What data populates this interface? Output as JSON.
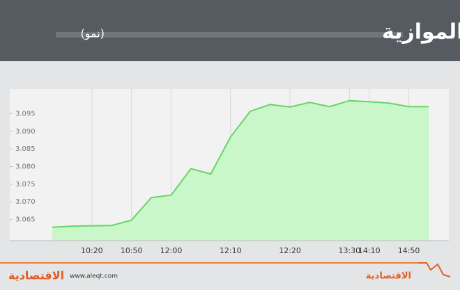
{
  "chart_data": {
    "type": "area",
    "title": "مؤشر السوق الموازية",
    "subtitle": "(نمو)",
    "categories": [
      null,
      null,
      "10:20",
      null,
      "10:50",
      null,
      "12:00",
      null,
      null,
      "12:10",
      null,
      null,
      "12:20",
      null,
      null,
      "13:30",
      "14:10",
      null,
      "14:50",
      null
    ],
    "values": [
      3.0628,
      3.0631,
      3.0632,
      3.0633,
      3.0648,
      3.0712,
      3.0719,
      3.0794,
      3.0779,
      3.0884,
      3.0957,
      3.0976,
      3.0969,
      3.0982,
      3.097,
      3.0987,
      3.0984,
      3.098,
      3.097,
      3.097
    ],
    "color": "#66d466",
    "fill": "#c9f7c9",
    "ylim": [
      3.059,
      3.102
    ],
    "yticks": [
      3.065,
      {
        "value": 3.07,
        "label": "3.070"
      },
      3.075,
      {
        "value": 3.08,
        "label": "3.080"
      },
      3.085,
      {
        "value": 3.09,
        "label": "3.090"
      },
      3.095
    ],
    "grid": true
  },
  "footer": {
    "logo": "الاقتصادية",
    "website": "www.aleqt.com",
    "logo_right": "الاقتصادية"
  }
}
